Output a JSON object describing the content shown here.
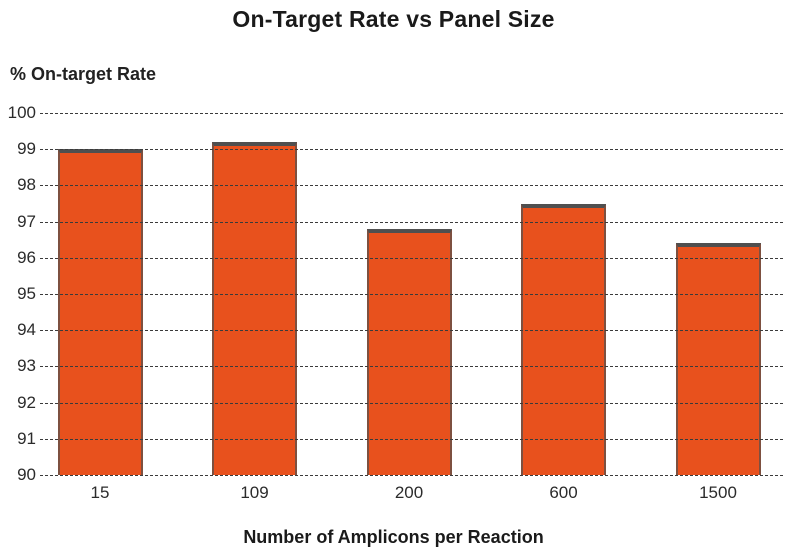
{
  "chart_data": {
    "type": "bar",
    "title": "On-Target Rate vs Panel Size",
    "ylabel": "% On-target Rate",
    "xlabel": "Number of Amplicons per Reaction",
    "categories": [
      "15",
      "109",
      "200",
      "600",
      "1500"
    ],
    "values": [
      99.0,
      99.2,
      96.8,
      97.5,
      96.4
    ],
    "ylim": [
      90,
      100
    ],
    "yticks": [
      100,
      99,
      98,
      97,
      96,
      95,
      94,
      93,
      92,
      91,
      90
    ],
    "grid": "horizontal-dashed, drawn over bars",
    "legend": "none",
    "bar_color": "#E8511D",
    "bar_edge_color": "#4F4F4F",
    "grid_color": "#3B3B3B",
    "text_color": "#1A1A1A",
    "background_color": "#FFFFFF"
  }
}
